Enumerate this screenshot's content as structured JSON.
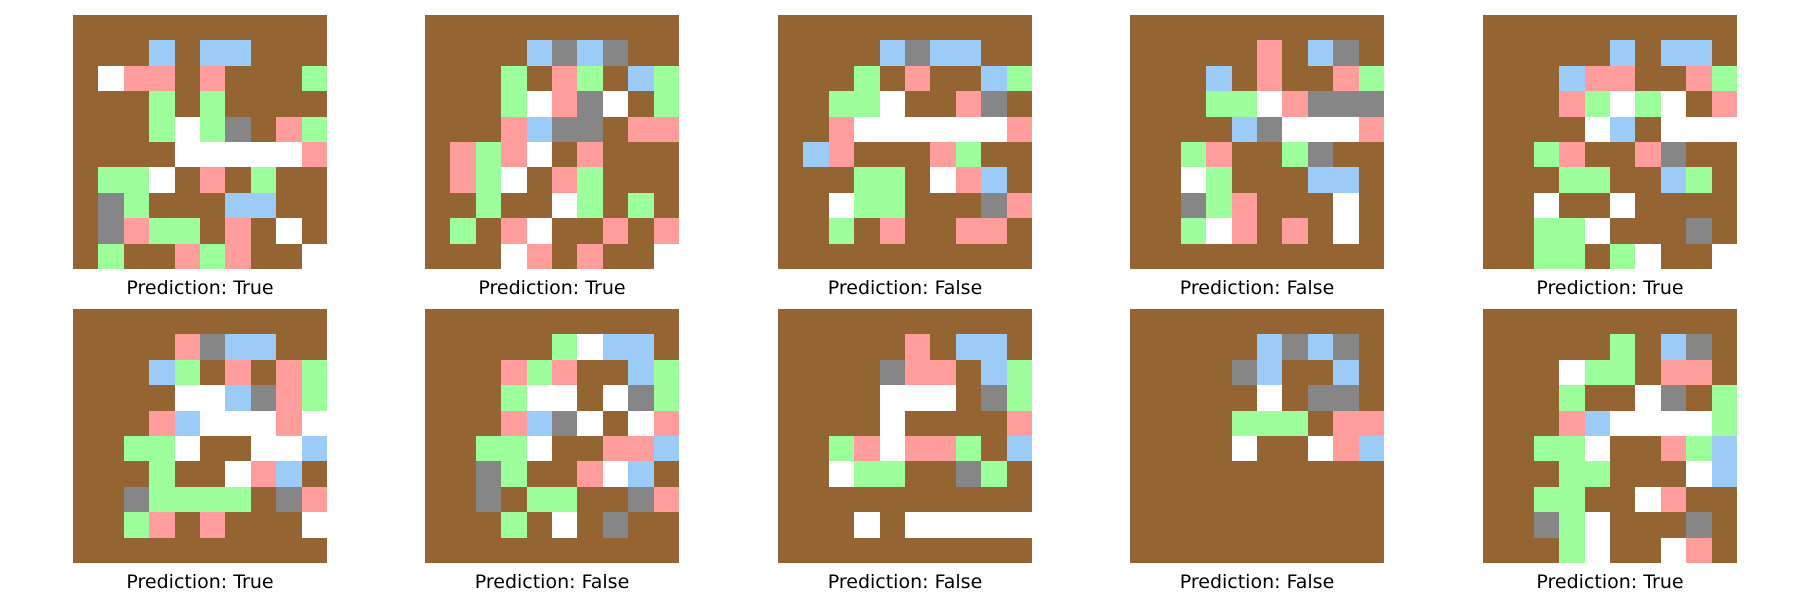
{
  "colors": {
    "0": "#956433",
    "1": "#9ccbf8",
    "2": "#868686",
    "3": "#ff9c9c",
    "4": "#9cff9c",
    "5": "#ffffff"
  },
  "panels": [
    {
      "label": "Prediction: True",
      "grid": [
        "0000000000",
        "0001011000",
        "0533030004",
        "0004040000",
        "0004542034",
        "0000555553",
        "0445030400",
        "0240001100",
        "0234403050",
        "0400343005"
      ]
    },
    {
      "label": "Prediction: True",
      "grid": [
        "0000000000",
        "0000121200",
        "0004034014",
        "0004532504",
        "0003122033",
        "0343503000",
        "0345034000",
        "0040054040",
        "0403500303",
        "0005303005"
      ]
    },
    {
      "label": "Prediction: False",
      "grid": [
        "0000000000",
        "0000121100",
        "0004030014",
        "0044500320",
        "0035555553",
        "0130003400",
        "0004405310",
        "0054400023",
        "0040300330",
        "0000000000"
      ]
    },
    {
      "label": "Prediction: False",
      "grid": [
        "0000000000",
        "0000030120",
        "0001030034",
        "0004453222",
        "0000125553",
        "0043004200",
        "0054000110",
        "0024300050",
        "0045303050",
        "0000000000"
      ]
    },
    {
      "label": "Prediction: True",
      "grid": [
        "0000000000",
        "0000010110",
        "0001330034",
        "0003454503",
        "0000510555",
        "0043003200",
        "0004400140",
        "0050050000",
        "0044500020",
        "0044045005"
      ]
    },
    {
      "label": "Prediction: True",
      "grid": [
        "0000000000",
        "0000321100",
        "0001403034",
        "0000551234",
        "0003155535",
        "0044500551",
        "0004005310",
        "0024444023",
        "0043030005",
        "0000000000"
      ]
    },
    {
      "label": "Prediction: False",
      "grid": [
        "0000000000",
        "0000045110",
        "0003430014",
        "0004550524",
        "0003125053",
        "0044500331",
        "0024003510",
        "0020440023",
        "0004050200",
        "0000000000"
      ]
    },
    {
      "label": "Prediction: False",
      "grid": [
        "0000000000",
        "0000030110",
        "0000233014",
        "0000555024",
        "0000500003",
        "0043533401",
        "0054400240",
        "0000000000",
        "0005055555",
        "0000000000"
      ]
    },
    {
      "label": "Prediction: False",
      "grid": [
        "0000000000",
        "0000012120",
        "0000210010",
        "0000050220",
        "0000444033",
        "0000500531",
        "0000000000",
        "0000000000",
        "0000000000",
        "0000000000"
      ]
    },
    {
      "label": "Prediction: True",
      "grid": [
        "0000000000",
        "0000040120",
        "0005440330",
        "0004005204",
        "0003155554",
        "0044500341",
        "0004400051",
        "0044005300",
        "0024500020",
        "0004500530"
      ]
    }
  ]
}
